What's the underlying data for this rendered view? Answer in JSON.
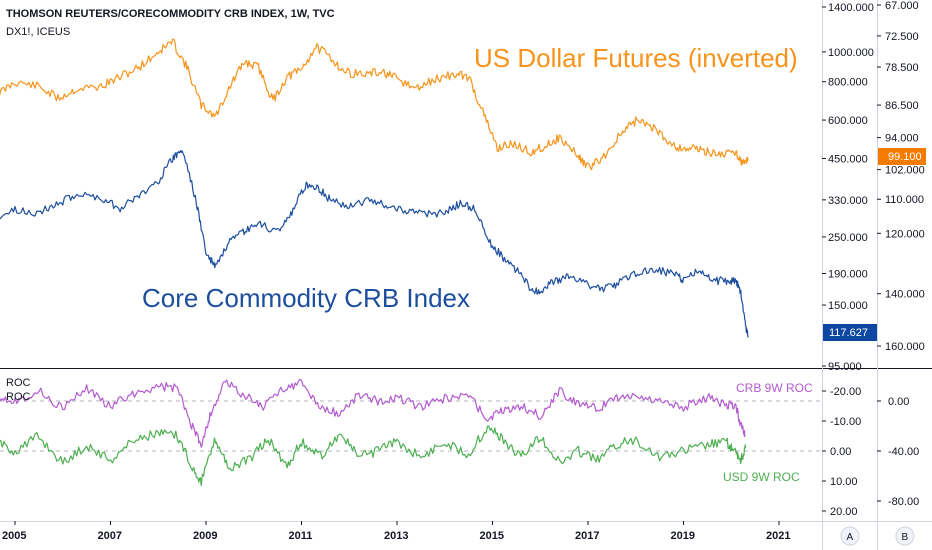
{
  "header": {
    "title": "THOMSON REUTERS/CORECOMMODITY CRB INDEX, 1W, TVC",
    "subtitle": "DX1!, ICEUS"
  },
  "annotations": {
    "usd_label": "US Dollar Futures (inverted)",
    "crb_label": "Core Commodity CRB Index",
    "roc_label_1": "ROC",
    "roc_label_2": "ROC",
    "crb_roc_legend": "CRB 9W ROC",
    "usd_roc_legend": "USD 9W ROC"
  },
  "badges": {
    "usd_last": "99.100",
    "crb_last": "117.627"
  },
  "axis_buttons": {
    "a": "A",
    "b": "B"
  },
  "colors": {
    "usd": "#f7931a",
    "crb": "#1d4e9e",
    "crb_roc": "#b35ad0",
    "usd_roc": "#4caf50",
    "badge_usd": "#f57c00",
    "badge_crb": "#0d47a1"
  },
  "chart_data": [
    {
      "type": "line",
      "title": "THOMSON REUTERS/CORECOMMODITY CRB INDEX, 1W, TVC",
      "y_scale": "log",
      "x_ticks": [
        "2005",
        "2007",
        "2009",
        "2011",
        "2013",
        "2015",
        "2017",
        "2019",
        "2021"
      ],
      "y_ticks_left_axis": [
        "1400.000",
        "1000.000",
        "800.000",
        "600.000",
        "450.000",
        "330.000",
        "250.000",
        "190.000",
        "150.000",
        "95.000"
      ],
      "y_ticks_right_axis_inverted": [
        "67.000",
        "72.500",
        "78.500",
        "86.500",
        "94.000",
        "102.000",
        "110.000",
        "120.000",
        "140.000",
        "160.000"
      ],
      "series": [
        {
          "name": "US Dollar Futures (inverted)",
          "axis": "right-inverted",
          "x": [
            2004.6,
            2005.0,
            2005.5,
            2005.9,
            2006.3,
            2006.8,
            2007.2,
            2007.6,
            2008.0,
            2008.3,
            2008.6,
            2008.9,
            2009.2,
            2009.5,
            2009.8,
            2010.1,
            2010.4,
            2010.7,
            2011.0,
            2011.3,
            2011.6,
            2011.9,
            2012.3,
            2012.7,
            2013.0,
            2013.4,
            2013.8,
            2014.2,
            2014.5,
            2014.8,
            2015.1,
            2015.4,
            2015.8,
            2016.1,
            2016.4,
            2016.8,
            2017.0,
            2017.3,
            2017.7,
            2018.0,
            2018.3,
            2018.6,
            2018.9,
            2019.2,
            2019.5,
            2019.8,
            2020.1,
            2020.25,
            2020.35
          ],
          "values": [
            84.5,
            81.5,
            82.5,
            85.0,
            83.0,
            82.5,
            80.5,
            78.5,
            75.5,
            73.5,
            78.5,
            86.5,
            89.0,
            82.5,
            77.5,
            78.5,
            85.5,
            80.5,
            79.0,
            74.5,
            76.5,
            79.5,
            80.0,
            79.5,
            81.0,
            83.0,
            81.0,
            80.0,
            80.5,
            88.0,
            96.5,
            95.5,
            97.5,
            96.0,
            94.0,
            98.5,
            101.5,
            99.0,
            93.0,
            90.0,
            91.0,
            94.0,
            96.5,
            96.5,
            97.5,
            98.0,
            97.5,
            100.5,
            99.1
          ]
        },
        {
          "name": "Core Commodity CRB Index",
          "axis": "left",
          "x": [
            2004.6,
            2005.0,
            2005.5,
            2005.9,
            2006.3,
            2006.8,
            2007.2,
            2007.6,
            2008.0,
            2008.3,
            2008.5,
            2008.8,
            2009.0,
            2009.2,
            2009.5,
            2009.8,
            2010.1,
            2010.5,
            2010.8,
            2011.1,
            2011.3,
            2011.6,
            2012.0,
            2012.4,
            2012.8,
            2013.2,
            2013.6,
            2014.0,
            2014.3,
            2014.6,
            2014.9,
            2015.2,
            2015.5,
            2015.8,
            2016.0,
            2016.3,
            2016.6,
            2017.0,
            2017.3,
            2017.6,
            2018.0,
            2018.4,
            2018.8,
            2019.0,
            2019.3,
            2019.6,
            2019.9,
            2020.1,
            2020.2,
            2020.3,
            2020.35
          ],
          "values": [
            290,
            305,
            300,
            320,
            345,
            335,
            310,
            340,
            380,
            450,
            480,
            320,
            220,
            200,
            240,
            260,
            275,
            260,
            300,
            370,
            365,
            330,
            315,
            330,
            315,
            305,
            295,
            300,
            320,
            310,
            245,
            215,
            195,
            170,
            165,
            180,
            185,
            175,
            170,
            175,
            190,
            195,
            190,
            180,
            195,
            180,
            180,
            180,
            165,
            128,
            117.627
          ]
        }
      ]
    },
    {
      "type": "line",
      "title": "ROC",
      "x_ticks": [
        "2005",
        "2007",
        "2009",
        "2011",
        "2013",
        "2015",
        "2017",
        "2019",
        "2021"
      ],
      "y_ticks_left_axis": [
        "-20.00",
        "-10.00",
        "0.00",
        "10.00",
        "20.00"
      ],
      "y_ticks_right_axis": [
        "0.00",
        "-40.00",
        "-80.00"
      ],
      "series": [
        {
          "name": "CRB 9W ROC",
          "axis": "right",
          "x": [
            2004.6,
            2005.0,
            2005.5,
            2006.0,
            2006.5,
            2007.0,
            2007.5,
            2008.0,
            2008.4,
            2008.7,
            2008.9,
            2009.1,
            2009.4,
            2009.8,
            2010.2,
            2010.6,
            2011.0,
            2011.4,
            2011.8,
            2012.2,
            2012.6,
            2013.0,
            2013.5,
            2014.0,
            2014.5,
            2014.9,
            2015.2,
            2015.6,
            2016.0,
            2016.4,
            2016.8,
            2017.2,
            2017.6,
            2018.0,
            2018.5,
            2019.0,
            2019.5,
            2019.9,
            2020.1,
            2020.2,
            2020.3
          ],
          "values": [
            5,
            0,
            8,
            -6,
            10,
            -4,
            6,
            12,
            10,
            -20,
            -35,
            -10,
            15,
            5,
            -5,
            10,
            14,
            -6,
            -10,
            5,
            0,
            3,
            -5,
            2,
            4,
            -15,
            -8,
            -4,
            -12,
            8,
            -2,
            -6,
            3,
            4,
            0,
            -5,
            3,
            -3,
            -4,
            -20,
            -28
          ]
        },
        {
          "name": "USD 9W ROC",
          "axis": "left",
          "x": [
            2004.6,
            2005.0,
            2005.5,
            2006.0,
            2006.5,
            2007.0,
            2007.5,
            2008.0,
            2008.4,
            2008.7,
            2008.9,
            2009.2,
            2009.5,
            2009.9,
            2010.3,
            2010.7,
            2011.0,
            2011.4,
            2011.8,
            2012.2,
            2012.6,
            2013.0,
            2013.5,
            2014.0,
            2014.5,
            2014.9,
            2015.2,
            2015.6,
            2016.0,
            2016.4,
            2016.8,
            2017.2,
            2017.6,
            2018.0,
            2018.5,
            2019.0,
            2019.5,
            2019.9,
            2020.1,
            2020.2,
            2020.3
          ],
          "values": [
            -3,
            0,
            -5,
            4,
            -2,
            3,
            -4,
            -6,
            -5,
            5,
            10,
            -4,
            6,
            3,
            -4,
            5,
            -3,
            2,
            -6,
            2,
            0,
            -3,
            2,
            -3,
            1,
            -8,
            -4,
            2,
            -5,
            4,
            0,
            3,
            -2,
            -4,
            2,
            0,
            -2,
            -3,
            1,
            3,
            -1
          ]
        }
      ]
    }
  ]
}
